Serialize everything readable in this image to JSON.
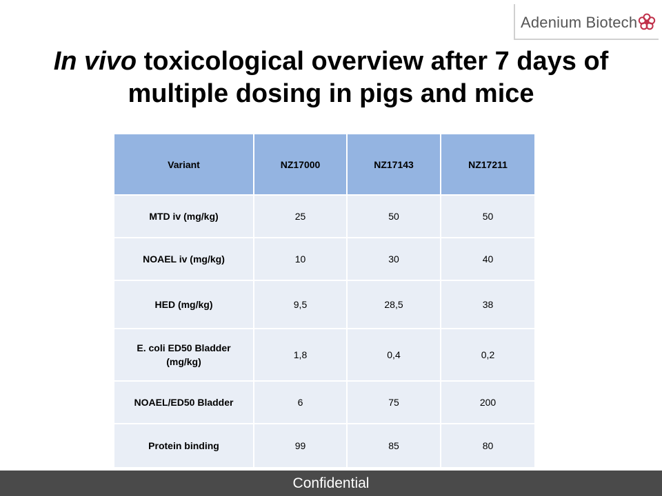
{
  "logo": {
    "text": "Adenium Biotech",
    "icon": "flower-icon",
    "icon_color": "#c0304a"
  },
  "title": {
    "italic_part": "In vivo",
    "rest_line1": " toxicological overview after 7 days of",
    "line2": "multiple dosing in pigs and mice"
  },
  "colors": {
    "header_bg": "#94b4e1",
    "cell_bg": "#e9eef6",
    "footer_bg": "#4a4a4a"
  },
  "chart_data": {
    "type": "table",
    "columns": [
      "Variant",
      "NZ17000",
      "NZ17143",
      "NZ17211"
    ],
    "rows": [
      [
        "MTD iv (mg/kg)",
        "25",
        "50",
        "50"
      ],
      [
        "NOAEL iv (mg/kg)",
        "10",
        "30",
        "40"
      ],
      [
        "HED (mg/kg)",
        "9,5",
        "28,5",
        "38"
      ],
      [
        "E. coli ED50 Bladder (mg/kg)",
        "1,8",
        "0,4",
        "0,2"
      ],
      [
        "NOAEL/ED50 Bladder",
        "6",
        "75",
        "200"
      ],
      [
        "Protein binding",
        "99",
        "85",
        "80"
      ]
    ]
  },
  "footer": {
    "text": "Confidential"
  }
}
